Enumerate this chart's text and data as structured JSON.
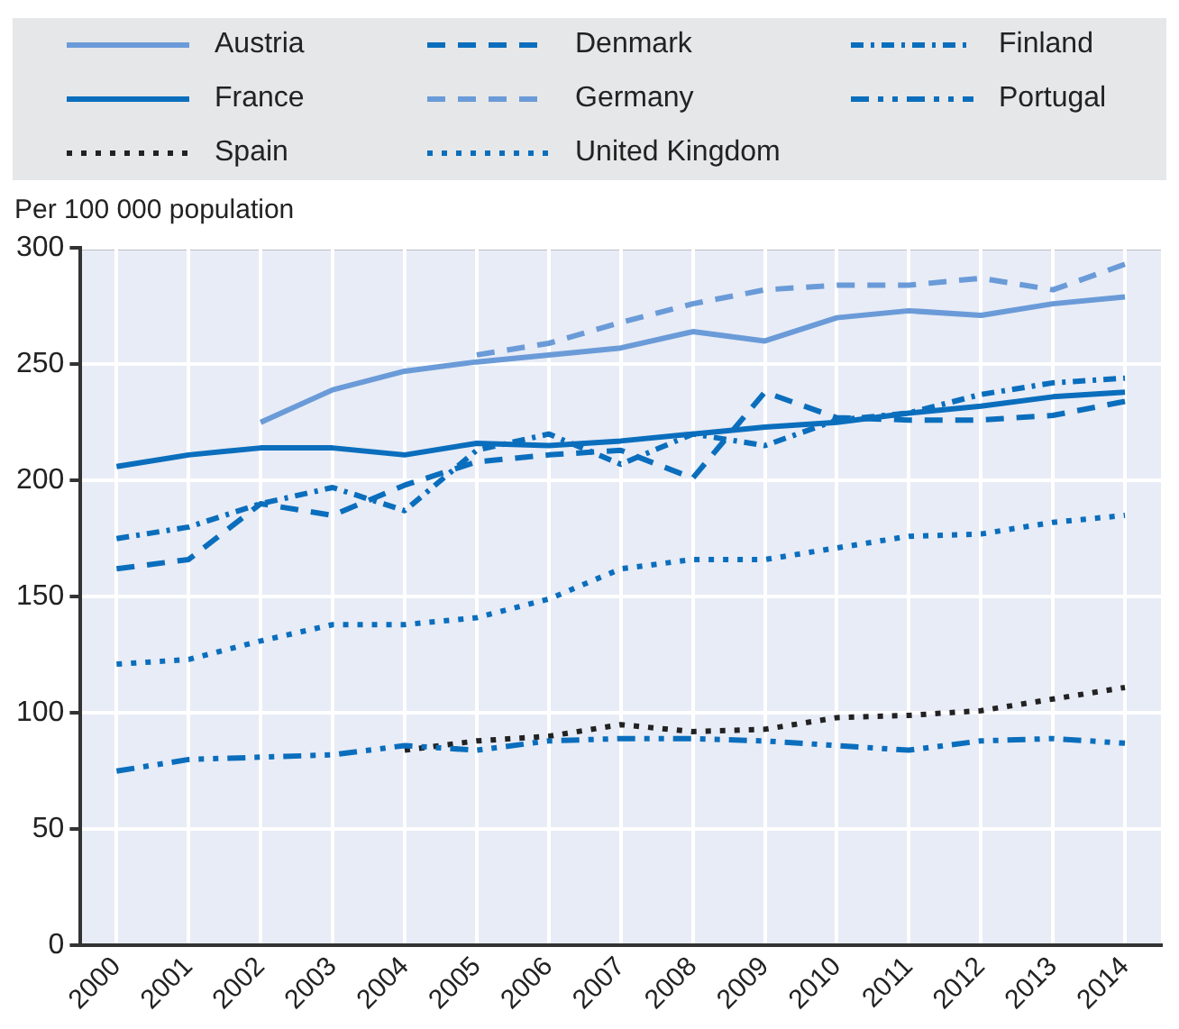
{
  "chart_data": {
    "type": "line",
    "ylabel": "Per 100 000 population",
    "categories": [
      "2000",
      "2001",
      "2002",
      "2003",
      "2004",
      "2005",
      "2006",
      "2007",
      "2008",
      "2009",
      "2010",
      "2011",
      "2012",
      "2013",
      "2014"
    ],
    "ylim": [
      0,
      300
    ],
    "yticks": [
      0,
      50,
      100,
      150,
      200,
      250,
      300
    ],
    "grid": true,
    "legend": "top",
    "marker": "none",
    "series": [
      {
        "name": "Austria",
        "color": "#6a9bd8",
        "line_style": "solid",
        "values": [
          null,
          null,
          225,
          239,
          247,
          251,
          254,
          257,
          264,
          260,
          270,
          273,
          271,
          276,
          279
        ]
      },
      {
        "name": "Denmark",
        "color": "#0a6ebd",
        "line_style": "dashed",
        "values": [
          162,
          166,
          190,
          185,
          198,
          208,
          211,
          213,
          201,
          238,
          227,
          226,
          226,
          228,
          234
        ]
      },
      {
        "name": "Finland",
        "color": "#0a6ebd",
        "line_style": "dashdot",
        "values": [
          175,
          180,
          190,
          197,
          187,
          213,
          220,
          207,
          220,
          215,
          226,
          229,
          237,
          242,
          244
        ]
      },
      {
        "name": "France",
        "color": "#0a6ebd",
        "line_style": "solid",
        "values": [
          206,
          211,
          214,
          214,
          211,
          216,
          215,
          217,
          220,
          223,
          225,
          229,
          232,
          236,
          238
        ]
      },
      {
        "name": "Germany",
        "color": "#6a9bd8",
        "line_style": "dashed",
        "values": [
          null,
          null,
          null,
          null,
          null,
          254,
          259,
          268,
          276,
          282,
          284,
          284,
          287,
          282,
          293
        ]
      },
      {
        "name": "Portugal",
        "color": "#0a6ebd",
        "line_style": "dashdotdot",
        "values": [
          75,
          80,
          81,
          82,
          86,
          84,
          88,
          89,
          89,
          88,
          86,
          84,
          88,
          89,
          87
        ]
      },
      {
        "name": "Spain",
        "color": "#222222",
        "line_style": "dotted",
        "values": [
          null,
          null,
          null,
          null,
          84,
          88,
          90,
          95,
          92,
          93,
          98,
          99,
          101,
          106,
          111
        ]
      },
      {
        "name": "United Kingdom",
        "color": "#0a6ebd",
        "line_style": "dotted",
        "values": [
          121,
          123,
          131,
          138,
          138,
          141,
          149,
          162,
          166,
          166,
          171,
          176,
          177,
          182,
          185
        ]
      }
    ]
  }
}
